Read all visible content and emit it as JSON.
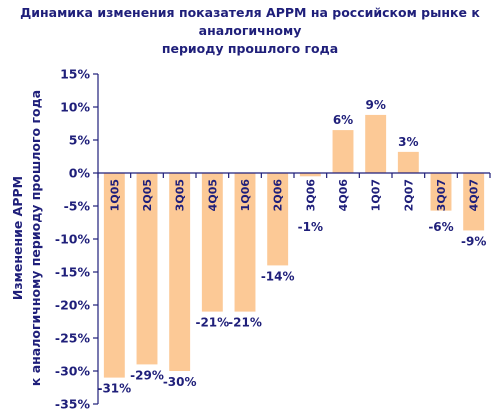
{
  "chart_data": {
    "type": "bar",
    "title_lines": [
      "Динамика изменения показателя APPM на российском рынке к аналогичному",
      "периоду прошлого года"
    ],
    "ylabel_lines": [
      "Изменение APPM",
      "к аналогичному периоду прошлого года"
    ],
    "categories": [
      "1Q05",
      "2Q05",
      "3Q05",
      "4Q05",
      "1Q06",
      "2Q06",
      "3Q06",
      "4Q06",
      "1Q07",
      "2Q07",
      "3Q07",
      "4Q07"
    ],
    "values": [
      -31,
      -29,
      -30,
      -21,
      -21,
      -14,
      -0.5,
      6.5,
      8.8,
      3.2,
      -5.7,
      -8.7
    ],
    "data_labels": [
      "-31%",
      "-29%",
      "-30%",
      "-21%",
      "-21%",
      "-14%",
      "-1%",
      "6%",
      "9%",
      "3%",
      "-6%",
      "-9%"
    ],
    "yticks": [
      15,
      10,
      5,
      0,
      -5,
      -10,
      -15,
      -20,
      -25,
      -30,
      -35
    ],
    "ytick_labels": [
      "15%",
      "10%",
      "5%",
      "0%",
      "-5%",
      "-10%",
      "-15%",
      "-20%",
      "-25%",
      "-30%",
      "-35%"
    ],
    "ylim": [
      -35,
      15
    ],
    "bar_color": "#fcc996",
    "axis_color": "#1f1f7a",
    "text_color": "#1f1f7a",
    "grid": false,
    "legend": "none"
  }
}
